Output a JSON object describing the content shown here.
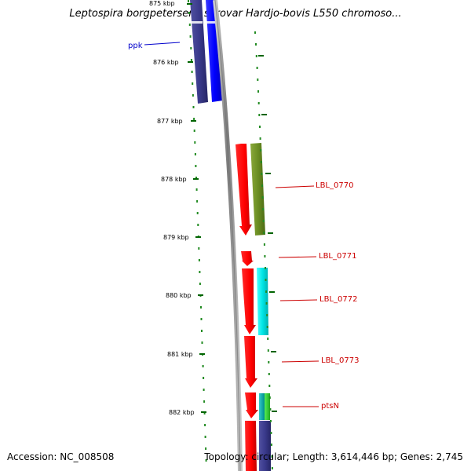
{
  "title": "Leptospira borgpetersenii serovar Hardjo-bovis L550 chromoso...",
  "footer": {
    "accession": "Accession: NC_008508",
    "summary": "Topology: circular; Length: 3,614,446 bp; Genes: 2,745"
  },
  "ruler_ticks": [
    {
      "label": "875 kbp"
    },
    {
      "label": "876 kbp"
    },
    {
      "label": "877 kbp"
    },
    {
      "label": "878 kbp"
    },
    {
      "label": "879 kbp"
    },
    {
      "label": "880 kbp"
    },
    {
      "label": "881 kbp"
    },
    {
      "label": "882 kbp"
    }
  ],
  "gene_labels": [
    {
      "name": "ppk",
      "color": "#0000cc"
    },
    {
      "name": "LBL_0770",
      "color": "#cc0000"
    },
    {
      "name": "LBL_0771",
      "color": "#cc0000"
    },
    {
      "name": "LBL_0772",
      "color": "#cc0000"
    },
    {
      "name": "LBL_0773",
      "color": "#cc0000"
    },
    {
      "name": "ptsN",
      "color": "#cc0000"
    }
  ],
  "colors": {
    "cds_red": "#ff0000",
    "cds_blue": "#0000ff",
    "cds_navy": "#3a3a8c",
    "cds_olive": "#6b8e23",
    "cds_cyan": "#00e5e5",
    "cds_teal": "#00b3b3",
    "cds_green": "#33cc33",
    "ruler_green": "#006400",
    "backbone": "#888888"
  }
}
